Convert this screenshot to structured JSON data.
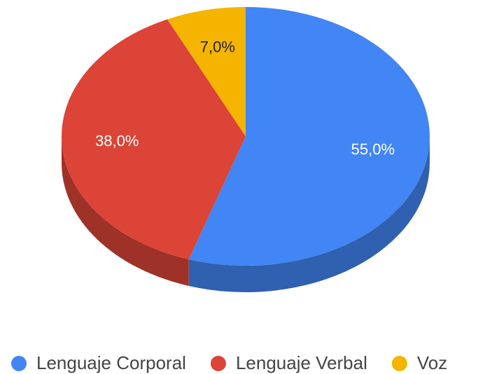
{
  "chart_data": {
    "type": "pie3d",
    "categories": [
      "Lenguaje Corporal",
      "Lenguaje Verbal",
      "Voz"
    ],
    "values": [
      55,
      38,
      7
    ],
    "value_labels": [
      "55,0%",
      "38,0%",
      "7,0%"
    ],
    "colors": [
      "#4285f4",
      "#db4437",
      "#f4b400"
    ],
    "legend": "bottom"
  }
}
